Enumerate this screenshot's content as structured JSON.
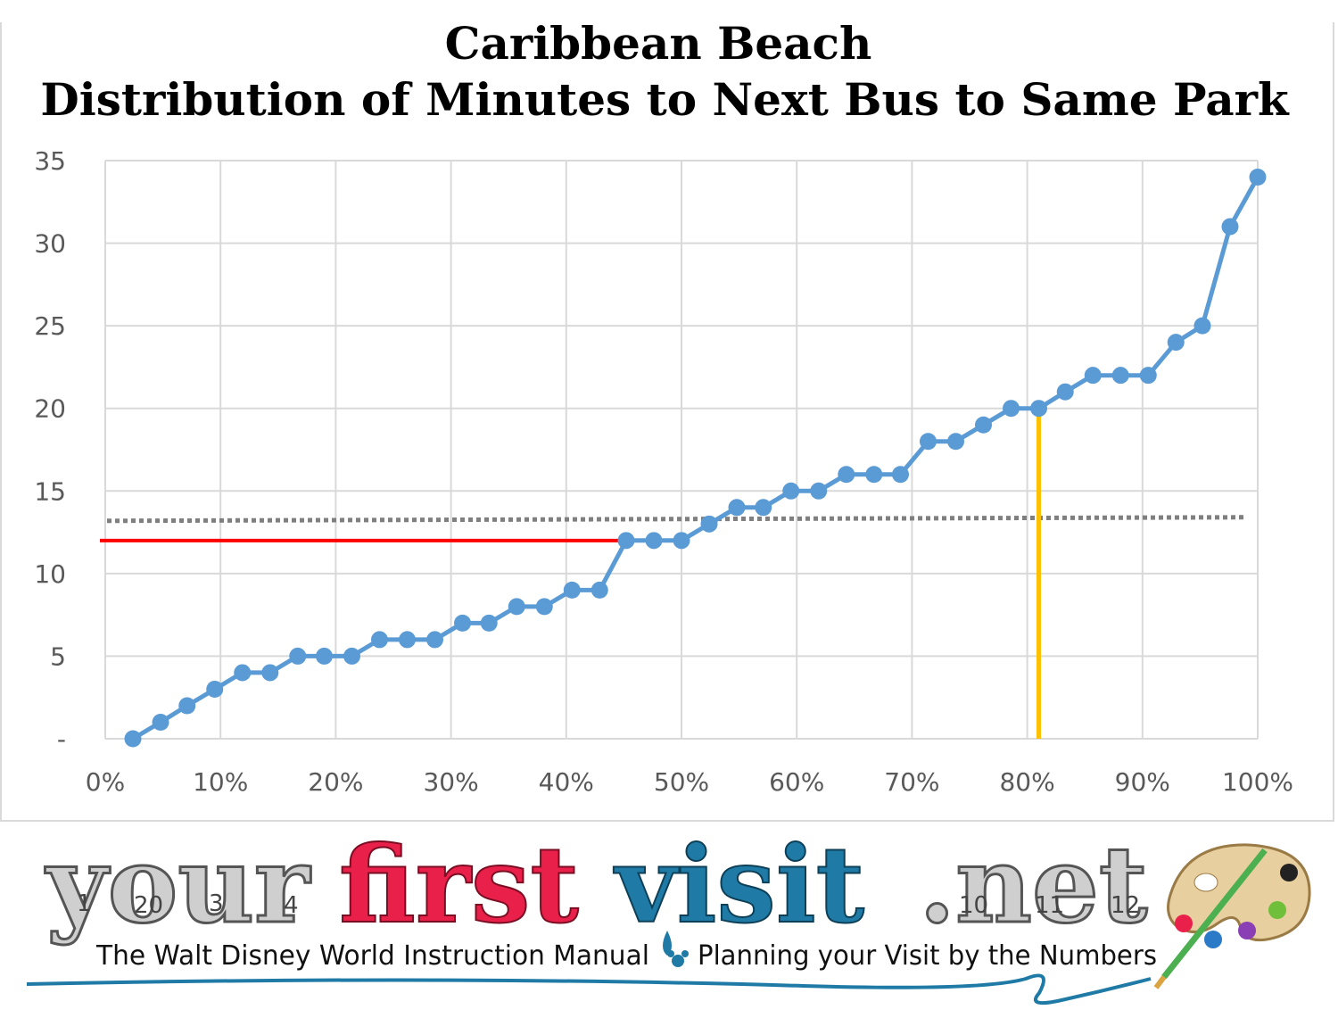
{
  "chart_data": {
    "type": "line",
    "title": [
      "Caribbean Beach",
      "Distribution of Minutes to Next Bus to Same Park"
    ],
    "y_ticks": [
      "-",
      "5",
      "10",
      "15",
      "20",
      "25",
      "30",
      "35"
    ],
    "x_ticks": [
      "0%",
      "10%",
      "20%",
      "30%",
      "40%",
      "50%",
      "60%",
      "70%",
      "80%",
      "90%",
      "100%"
    ],
    "xlim": [
      0,
      100
    ],
    "ylim": [
      0,
      35
    ],
    "grid": true,
    "series": [
      {
        "color": "#5b9bd5",
        "x": [
          2.4,
          4.8,
          7.1,
          9.5,
          11.9,
          14.3,
          16.7,
          19.0,
          21.4,
          23.8,
          26.2,
          28.6,
          31.0,
          33.3,
          35.7,
          38.1,
          40.5,
          42.9,
          45.2,
          47.6,
          50.0,
          52.4,
          54.8,
          57.1,
          59.5,
          61.9,
          64.3,
          66.7,
          69.0,
          71.4,
          73.8,
          76.2,
          78.6,
          81.0,
          83.3,
          85.7,
          88.1,
          90.5,
          92.9,
          95.2,
          97.6,
          100.0
        ],
        "y": [
          0,
          1,
          2,
          3,
          4,
          4,
          5,
          5,
          5,
          6,
          6,
          6,
          7,
          7,
          8,
          8,
          9,
          9,
          12,
          12,
          12,
          13,
          14,
          14,
          15,
          15,
          16,
          16,
          16,
          18,
          18,
          19,
          20,
          20,
          21,
          22,
          22,
          22,
          24,
          25,
          31,
          34
        ]
      }
    ],
    "reference_lines": [
      {
        "kind": "horizontal-dotted",
        "color": "#7f7f7f",
        "y": 13.3,
        "x_from": 0,
        "x_to": 99
      },
      {
        "kind": "horizontal",
        "color": "#ff0000",
        "y": 12,
        "x_from": 0,
        "x_to": 45.2
      },
      {
        "kind": "vertical",
        "color": "#ffc000",
        "x": 81.0,
        "y_from": 0,
        "y_to": 20
      }
    ]
  },
  "banner": {
    "logo_part1": "your",
    "logo_part2": "first",
    "logo_part3": "visit",
    "logo_part4": ".net",
    "calendar_numbers": [
      "1",
      "20",
      "3",
      "4",
      "10",
      "11",
      "12"
    ],
    "tagline_left": "The Walt Disney World Instruction Manual",
    "tagline_right": "Planning your Visit by the Numbers"
  }
}
